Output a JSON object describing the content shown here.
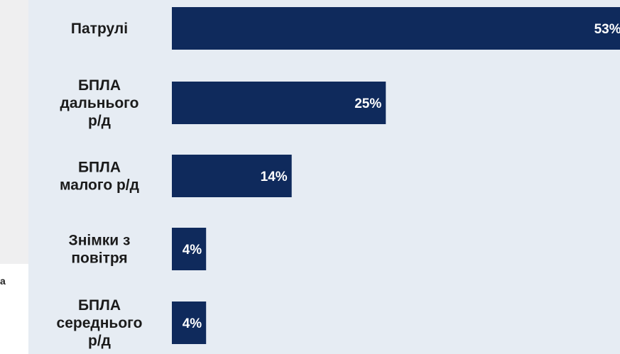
{
  "side_fragment": "а",
  "colors": {
    "bar": "#0f2a5c",
    "panel": "#e6ecf3",
    "label": "#1b1b1b",
    "value_text": "#ffffff"
  },
  "chart_data": {
    "type": "bar",
    "orientation": "horizontal",
    "categories": [
      [
        "Патрулі"
      ],
      [
        "БПЛА",
        "дальнього",
        "р/д"
      ],
      [
        "БПЛА",
        "малого р/д"
      ],
      [
        "Знімки з",
        "повітря"
      ],
      [
        "БПЛА",
        "середнього",
        "р/д"
      ]
    ],
    "values": [
      53,
      25,
      14,
      4,
      4
    ],
    "value_labels": [
      "53%",
      "25%",
      "14%",
      "4%",
      "4%"
    ],
    "unit": "%",
    "grid": false,
    "legend": "none"
  }
}
